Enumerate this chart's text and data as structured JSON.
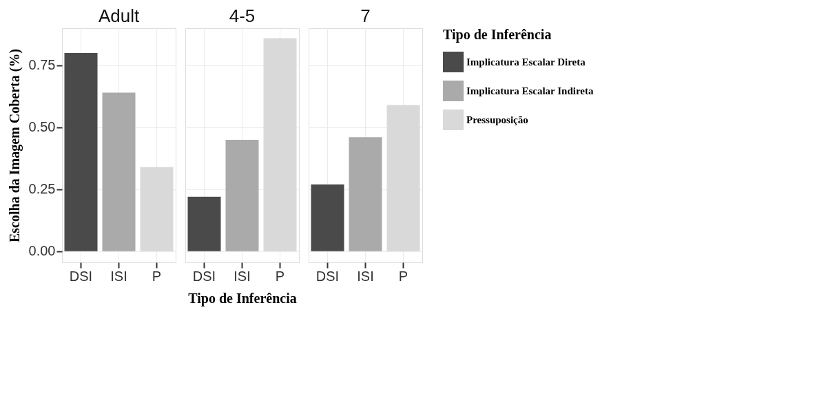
{
  "chart_data": [
    {
      "type": "bar",
      "title": "Adult",
      "ylabel": "Escolha da Imagem Coberta (%)",
      "categories": [
        "DSI",
        "ISI",
        "P"
      ],
      "ylim": [
        -0.045,
        0.9
      ],
      "yticks": [
        {
          "value": 0,
          "label": "0.00"
        },
        {
          "value": 0.25,
          "label": "0.25"
        },
        {
          "value": 0.5,
          "label": "0.50"
        },
        {
          "value": 0.75,
          "label": "0.75"
        }
      ],
      "grid": true,
      "series": [
        {
          "color": "#4a4a4a",
          "values": [
            0.8,
            null,
            null
          ]
        },
        {
          "color": "#aaaaaa",
          "values": [
            null,
            0.64,
            null
          ]
        },
        {
          "color": "#d9d9d9",
          "values": [
            null,
            null,
            0.34
          ]
        }
      ]
    },
    {
      "type": "bar",
      "title": "4-5",
      "xlabel": "Tipo de Inferência",
      "categories": [
        "DSI",
        "ISI",
        "P"
      ],
      "ylim": [
        -0.045,
        0.9
      ],
      "grid": true,
      "tick_labels": "x",
      "series": [
        {
          "color": "#4a4a4a",
          "values": [
            0.22,
            null,
            null
          ]
        },
        {
          "color": "#aaaaaa",
          "values": [
            null,
            0.45,
            null
          ]
        },
        {
          "color": "#d9d9d9",
          "values": [
            null,
            null,
            0.86
          ]
        }
      ]
    },
    {
      "type": "bar",
      "title": "7",
      "categories": [
        "DSI",
        "ISI",
        "P"
      ],
      "ylim": [
        -0.045,
        0.9
      ],
      "grid": true,
      "tick_labels": "x",
      "legend": "right",
      "legend_title": "Tipo de Inferência",
      "series": [
        {
          "name": "Implicatura Escalar Direta",
          "color": "#4a4a4a",
          "values": [
            0.27,
            null,
            null
          ]
        },
        {
          "name": "Implicatura Escalar Indireta",
          "color": "#aaaaaa",
          "values": [
            null,
            0.46,
            null
          ]
        },
        {
          "name": "Pressuposição",
          "color": "#d9d9d9",
          "values": [
            null,
            null,
            0.59
          ]
        }
      ]
    }
  ]
}
